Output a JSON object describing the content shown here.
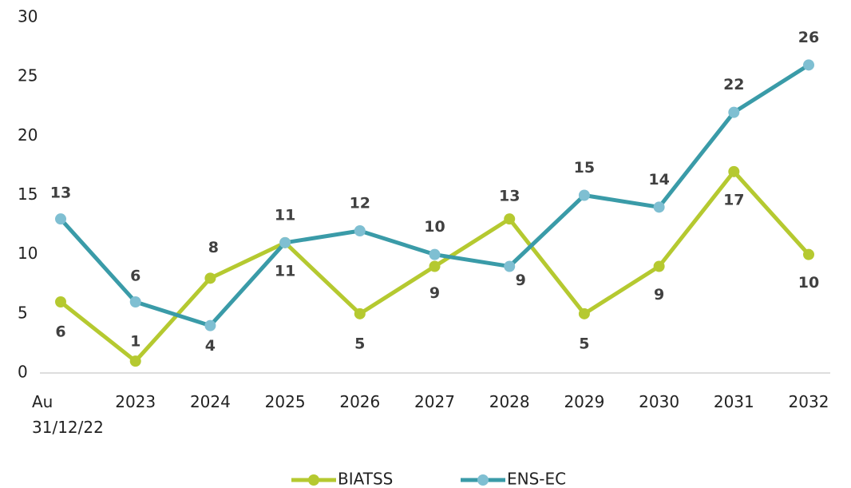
{
  "chart_data": {
    "type": "line",
    "categories": [
      "Au 31/12/22",
      "2023",
      "2024",
      "2025",
      "2026",
      "2027",
      "2028",
      "2029",
      "2030",
      "2031",
      "2032"
    ],
    "series": [
      {
        "name": "BIATSS",
        "color": "#b5c930",
        "marker_color": "#b5c930",
        "values": [
          6,
          1,
          8,
          11,
          5,
          9,
          13,
          5,
          9,
          17,
          10
        ]
      },
      {
        "name": "ENS-EC",
        "color": "#3a9ba8",
        "marker_color": "#7fbfd2",
        "values": [
          13,
          6,
          4,
          11,
          12,
          10,
          9,
          15,
          14,
          22,
          26
        ]
      }
    ],
    "ylim": [
      0,
      30
    ],
    "yticks": [
      0,
      5,
      10,
      15,
      20,
      25,
      30
    ],
    "grid": false,
    "legend": "bottom"
  }
}
